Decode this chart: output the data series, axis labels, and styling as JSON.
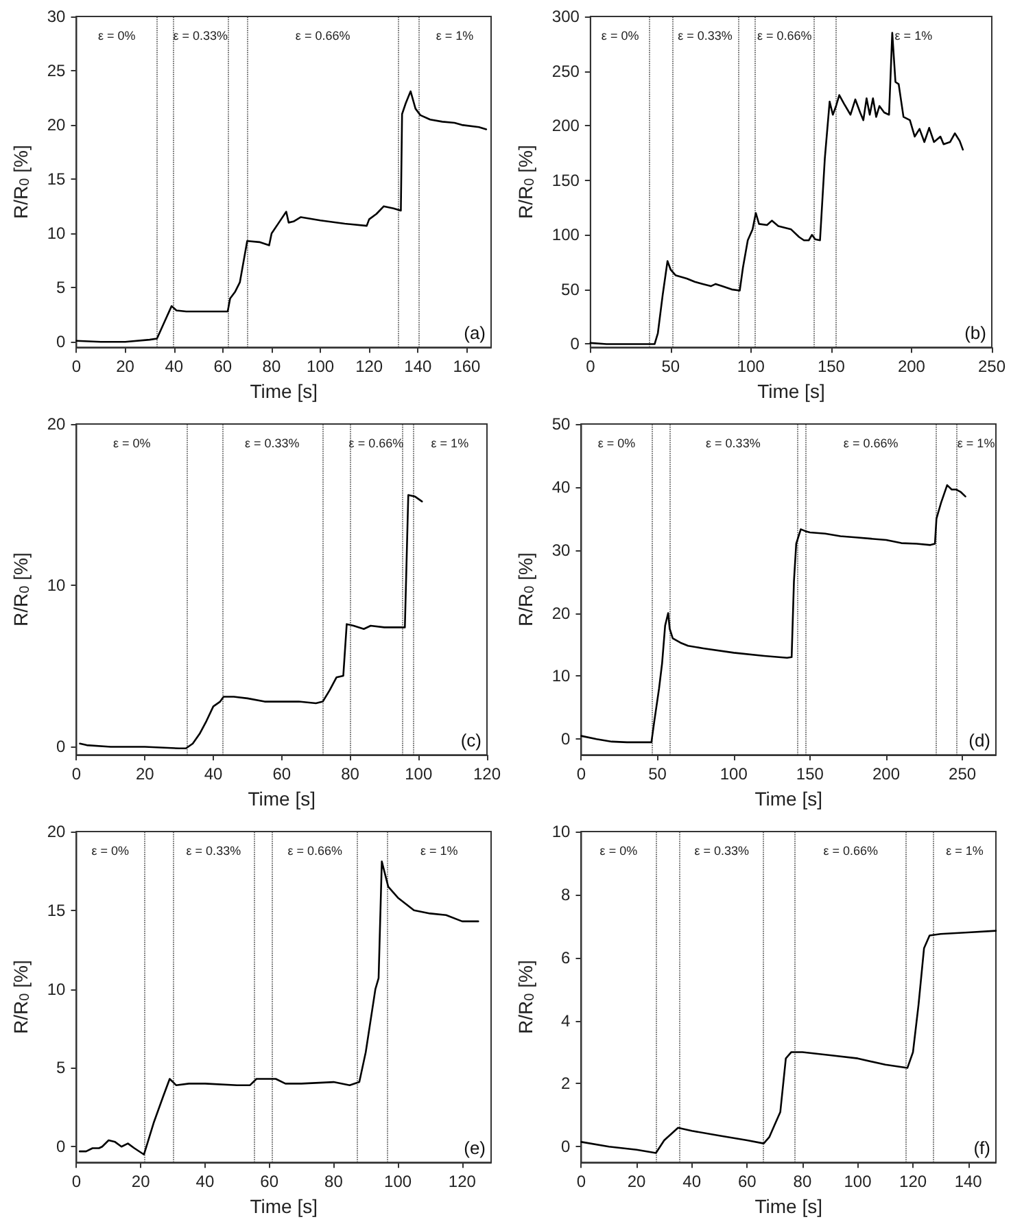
{
  "chart_data": [
    {
      "type": "line",
      "xlabel": "Time [s]",
      "ylabel": "R/R$_{0}$ [%]",
      "marker": "none",
      "xlim": [
        0,
        170
      ],
      "ylim": [
        -0.5,
        30
      ],
      "xticks": [
        0,
        20,
        40,
        60,
        80,
        100,
        120,
        140,
        160
      ],
      "yticks": [
        0,
        5,
        10,
        15,
        20,
        25,
        30
      ],
      "x": [
        0,
        10,
        20,
        30,
        33,
        36,
        39,
        41,
        45,
        55,
        62,
        63,
        65,
        67,
        70,
        75,
        79,
        80,
        83,
        86,
        87,
        89,
        92,
        100,
        110,
        119,
        120,
        123,
        126,
        130,
        133,
        133.5,
        135,
        137,
        139,
        141,
        145,
        150,
        155,
        158,
        165,
        168
      ],
      "series": [
        {
          "color": "#000000",
          "values": [
            0.1,
            0,
            0,
            0.2,
            0.3,
            1.8,
            3.3,
            2.9,
            2.8,
            2.8,
            2.8,
            4.0,
            4.6,
            5.5,
            9.3,
            9.2,
            8.9,
            10,
            11,
            12,
            11,
            11.1,
            11.5,
            11.2,
            10.9,
            10.7,
            11.3,
            11.8,
            12.5,
            12.3,
            12.1,
            21,
            22,
            23.1,
            21.5,
            20.9,
            20.5,
            20.3,
            20.2,
            20,
            19.8,
            19.6
          ]
        }
      ],
      "ref_lines": [
        {
          "axis": "x",
          "value": 33.1,
          "line_style": "dotted"
        },
        {
          "axis": "x",
          "value": 39.6,
          "line_style": "dotted"
        },
        {
          "axis": "x",
          "value": 62.1,
          "line_style": "dotted"
        },
        {
          "axis": "x",
          "value": 70,
          "line_style": "dotted"
        },
        {
          "axis": "x",
          "value": 132,
          "line_style": "dotted"
        },
        {
          "axis": "x",
          "value": 140.2,
          "line_style": "dotted"
        }
      ],
      "annotations": [
        "ε = 0%",
        "ε = 0.33%",
        "ε = 0.66%",
        "ε = 1%",
        "(a)"
      ]
    },
    {
      "type": "line",
      "xlabel": "Time [s]",
      "ylabel": "R/R$_{0}$ [%]",
      "marker": "none",
      "xlim": [
        0,
        250
      ],
      "ylim": [
        -3,
        300
      ],
      "xticks": [
        0,
        50,
        100,
        150,
        200,
        250
      ],
      "yticks": [
        0,
        50,
        100,
        150,
        200,
        250,
        300
      ],
      "x": [
        0,
        10,
        20,
        30,
        40,
        42,
        45,
        48,
        50,
        53,
        60,
        65,
        70,
        75,
        78,
        82,
        88,
        93,
        95,
        98,
        101,
        103,
        105,
        110,
        113,
        117,
        125,
        130,
        133,
        136,
        138,
        140,
        143,
        146,
        149,
        151,
        153,
        155,
        158,
        162,
        165,
        168,
        170,
        172,
        174,
        176,
        178,
        180,
        183,
        186,
        188,
        190,
        192,
        195,
        199,
        202,
        205,
        208,
        211,
        214,
        218,
        220,
        224,
        227,
        230,
        232
      ],
      "series": [
        {
          "color": "#000000",
          "values": [
            1,
            0,
            0,
            0,
            0,
            10,
            45,
            76,
            68,
            63,
            60,
            57,
            55,
            53,
            55,
            53,
            50,
            49,
            70,
            95,
            105,
            120,
            110,
            109,
            113,
            108,
            105,
            98,
            95,
            95,
            100,
            96,
            95,
            170,
            222,
            210,
            218,
            228,
            220,
            210,
            224,
            212,
            205,
            225,
            210,
            225,
            208,
            218,
            212,
            210,
            285,
            240,
            238,
            208,
            205,
            190,
            197,
            185,
            198,
            185,
            190,
            183,
            185,
            193,
            186,
            178
          ]
        }
      ],
      "ref_lines": [
        {
          "axis": "x",
          "value": 37,
          "line_style": "dotted"
        },
        {
          "axis": "x",
          "value": 51,
          "line_style": "dotted"
        },
        {
          "axis": "x",
          "value": 91.8,
          "line_style": "dotted"
        },
        {
          "axis": "x",
          "value": 102.5,
          "line_style": "dotted"
        },
        {
          "axis": "x",
          "value": 139.3,
          "line_style": "dotted"
        },
        {
          "axis": "x",
          "value": 152.5,
          "line_style": "dotted"
        }
      ],
      "annotations": [
        "ε = 0%",
        "ε = 0.33%",
        "ε = 0.66%",
        "ε = 1%",
        "(b)"
      ]
    },
    {
      "type": "line",
      "xlabel": "Time [s]",
      "ylabel": "R/R$_{0}$ [%]",
      "marker": "none",
      "xlim": [
        0,
        120
      ],
      "ylim": [
        -0.5,
        20
      ],
      "xticks": [
        0,
        20,
        40,
        60,
        80,
        100,
        120
      ],
      "yticks": [
        0,
        10,
        20
      ],
      "x": [
        1,
        3,
        10,
        20,
        30,
        32,
        34,
        36,
        38,
        40,
        42,
        43,
        46,
        50,
        55,
        60,
        65,
        70,
        72,
        74,
        76,
        78,
        79,
        81,
        84,
        86,
        90,
        95,
        96,
        97,
        99,
        101
      ],
      "series": [
        {
          "color": "#000000",
          "values": [
            0.2,
            0.1,
            0,
            0,
            -0.1,
            -0.1,
            0.2,
            0.8,
            1.6,
            2.5,
            2.8,
            3.1,
            3.1,
            3.0,
            2.8,
            2.8,
            2.8,
            2.7,
            2.8,
            3.5,
            4.3,
            4.4,
            7.6,
            7.5,
            7.3,
            7.5,
            7.4,
            7.4,
            7.4,
            15.6,
            15.5,
            15.2
          ]
        }
      ],
      "ref_lines": [
        {
          "axis": "x",
          "value": 32.4,
          "line_style": "dotted"
        },
        {
          "axis": "x",
          "value": 42.6,
          "line_style": "dotted"
        },
        {
          "axis": "x",
          "value": 71.8,
          "line_style": "dotted"
        },
        {
          "axis": "x",
          "value": 80.1,
          "line_style": "dotted"
        },
        {
          "axis": "x",
          "value": 95.1,
          "line_style": "dotted"
        },
        {
          "axis": "x",
          "value": 98.3,
          "line_style": "dotted"
        }
      ],
      "annotations": [
        "ε = 0%",
        "ε = 0.33%",
        "ε = 0.66%",
        "ε = 1%",
        "(c)"
      ]
    },
    {
      "type": "line",
      "xlabel": "Time [s]",
      "ylabel": "R/R$_{0}$ [%]",
      "marker": "none",
      "xlim": [
        0,
        272
      ],
      "ylim": [
        -2.5,
        50
      ],
      "xticks": [
        0,
        50,
        100,
        150,
        200,
        250
      ],
      "yticks": [
        0,
        10,
        20,
        30,
        40,
        50
      ],
      "x": [
        0,
        10,
        20,
        30,
        46,
        48,
        51,
        53,
        55,
        57,
        58,
        60,
        65,
        70,
        80,
        100,
        120,
        135,
        138,
        139.5,
        141,
        144,
        147,
        150,
        160,
        170,
        180,
        190,
        200,
        210,
        220,
        229,
        232,
        233,
        236,
        240,
        243,
        246,
        249,
        252
      ],
      "series": [
        {
          "color": "#000000",
          "values": [
            0.5,
            0,
            -0.4,
            -0.5,
            -0.5,
            3,
            8,
            12,
            18,
            20,
            17.5,
            16,
            15.3,
            14.8,
            14.4,
            13.7,
            13.2,
            12.9,
            13,
            25,
            31,
            33.3,
            33,
            32.8,
            32.6,
            32.2,
            32,
            31.8,
            31.6,
            31.1,
            31.0,
            30.8,
            31,
            35,
            37.5,
            40.3,
            39.6,
            39.6,
            39.2,
            38.5
          ]
        }
      ],
      "ref_lines": [
        {
          "axis": "x",
          "value": 46.3,
          "line_style": "dotted"
        },
        {
          "axis": "x",
          "value": 57.6,
          "line_style": "dotted"
        },
        {
          "axis": "x",
          "value": 141.6,
          "line_style": "dotted"
        },
        {
          "axis": "x",
          "value": 147.3,
          "line_style": "dotted"
        },
        {
          "axis": "x",
          "value": 232.6,
          "line_style": "dotted"
        },
        {
          "axis": "x",
          "value": 246,
          "line_style": "dotted"
        }
      ],
      "annotations": [
        "ε = 0%",
        "ε = 0.33%",
        "ε = 0.66%",
        "ε = 1%",
        "(d)"
      ]
    },
    {
      "type": "line",
      "xlabel": "Time [s]",
      "ylabel": "R/R$_{0}$ [%]",
      "marker": "none",
      "xlim": [
        0,
        129
      ],
      "ylim": [
        -1,
        20
      ],
      "xticks": [
        0,
        20,
        40,
        60,
        80,
        100,
        120
      ],
      "yticks": [
        0,
        5,
        10,
        15,
        20
      ],
      "x": [
        1,
        3,
        5,
        7,
        8,
        10,
        12,
        14,
        16,
        18,
        21,
        24,
        27,
        29,
        31,
        35,
        40,
        50,
        54,
        56,
        60,
        62,
        65,
        70,
        80,
        85,
        88,
        90,
        93,
        94,
        95,
        97,
        100,
        105,
        110,
        115,
        120,
        125
      ],
      "series": [
        {
          "color": "#000000",
          "values": [
            -0.3,
            -0.3,
            -0.1,
            -0.1,
            0,
            0.4,
            0.3,
            0,
            0.2,
            -0.1,
            -0.5,
            1.5,
            3.2,
            4.3,
            3.9,
            4.0,
            4.0,
            3.9,
            3.9,
            4.3,
            4.3,
            4.3,
            4.0,
            4.0,
            4.1,
            3.9,
            4.1,
            6,
            10,
            10.7,
            18.1,
            16.5,
            15.8,
            15.0,
            14.8,
            14.7,
            14.3,
            14.3
          ]
        }
      ],
      "ref_lines": [
        {
          "axis": "x",
          "value": 21,
          "line_style": "dotted"
        },
        {
          "axis": "x",
          "value": 30,
          "line_style": "dotted"
        },
        {
          "axis": "x",
          "value": 55.3,
          "line_style": "dotted"
        },
        {
          "axis": "x",
          "value": 61,
          "line_style": "dotted"
        },
        {
          "axis": "x",
          "value": 87.4,
          "line_style": "dotted"
        },
        {
          "axis": "x",
          "value": 96.7,
          "line_style": "dotted"
        }
      ],
      "annotations": [
        "ε = 0%",
        "ε = 0.33%",
        "ε = 0.66%",
        "ε = 1%",
        "(e)"
      ]
    },
    {
      "type": "line",
      "xlabel": "Time [s]",
      "ylabel": "R/R$_{0}$ [%]",
      "marker": "none",
      "xlim": [
        0,
        150
      ],
      "ylim": [
        -0.5,
        10
      ],
      "xticks": [
        0,
        20,
        40,
        60,
        80,
        100,
        120,
        140
      ],
      "yticks": [
        0,
        2,
        4,
        6,
        8,
        10
      ],
      "x": [
        0,
        10,
        20,
        27,
        30,
        35,
        40,
        50,
        60,
        66,
        68,
        70,
        72,
        74,
        76,
        80,
        90,
        100,
        110,
        118,
        120,
        122,
        124,
        126,
        130,
        140,
        150
      ],
      "series": [
        {
          "color": "#000000",
          "values": [
            0.15,
            0,
            -0.1,
            -0.2,
            0.2,
            0.6,
            0.5,
            0.35,
            0.2,
            0.1,
            0.3,
            0.7,
            1.1,
            2.8,
            3.0,
            3.0,
            2.9,
            2.8,
            2.6,
            2.5,
            3,
            4.5,
            6.3,
            6.7,
            6.75,
            6.8,
            6.85
          ]
        }
      ],
      "ref_lines": [
        {
          "axis": "x",
          "value": 27,
          "line_style": "dotted"
        },
        {
          "axis": "x",
          "value": 35.6,
          "line_style": "dotted"
        },
        {
          "axis": "x",
          "value": 66,
          "line_style": "dotted"
        },
        {
          "axis": "x",
          "value": 77.4,
          "line_style": "dotted"
        },
        {
          "axis": "x",
          "value": 117.5,
          "line_style": "dotted"
        },
        {
          "axis": "x",
          "value": 127.4,
          "line_style": "dotted"
        }
      ],
      "annotations": [
        "ε = 0%",
        "ε = 0.33%",
        "ε = 0.66%",
        "ε = 1%",
        "(f)"
      ]
    }
  ]
}
